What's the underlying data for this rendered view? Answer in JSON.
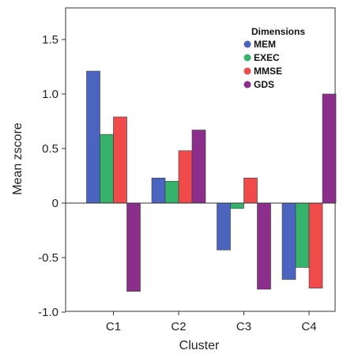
{
  "chart_data": {
    "type": "bar",
    "xlabel": "Cluster",
    "ylabel": "Mean zscore",
    "ylim": [
      -1.0,
      1.7
    ],
    "yticks": [
      -1.0,
      -0.5,
      0,
      0.5,
      1.0,
      1.5
    ],
    "ytick_labels": [
      "-1.0",
      "-0.5",
      "0",
      "0.5",
      "1.0",
      "1.5"
    ],
    "categories": [
      "C1",
      "C2",
      "C3",
      "C4"
    ],
    "legend": {
      "title": "Dimensions",
      "position": "top-right"
    },
    "grid": false,
    "series": [
      {
        "name": "MEM",
        "color": "#4a64c0",
        "values": [
          1.21,
          0.23,
          -0.43,
          -0.7
        ]
      },
      {
        "name": "EXEC",
        "color": "#36b36a",
        "values": [
          0.63,
          0.2,
          -0.05,
          -0.59
        ]
      },
      {
        "name": "MMSE",
        "color": "#f04a4a",
        "values": [
          0.79,
          0.48,
          0.23,
          -0.78
        ]
      },
      {
        "name": "GDS",
        "color": "#8c2e8c",
        "values": [
          -0.81,
          0.67,
          -0.79,
          1.0
        ]
      }
    ]
  }
}
